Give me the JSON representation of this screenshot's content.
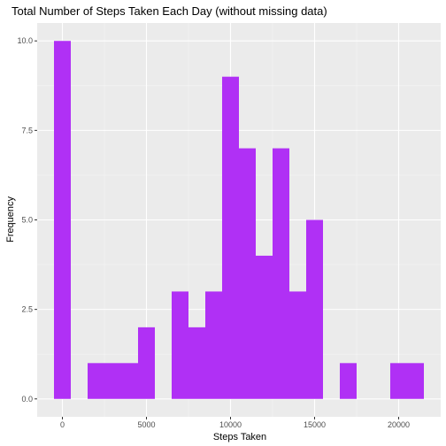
{
  "chart_data": {
    "type": "bar",
    "subtype": "histogram",
    "title": "Total Number of Steps Taken Each Day (without missing data)",
    "xlabel": "Steps Taken",
    "ylabel": "Frequency",
    "bin_width": 1000,
    "bin_centers": [
      0,
      1000,
      2000,
      3000,
      4000,
      5000,
      6000,
      7000,
      8000,
      9000,
      10000,
      11000,
      12000,
      13000,
      14000,
      15000,
      16000,
      17000,
      18000,
      19000,
      20000,
      21000
    ],
    "values": [
      10,
      0,
      1,
      1,
      1,
      2,
      0,
      3,
      2,
      3,
      9,
      7,
      4,
      7,
      3,
      5,
      0,
      1,
      0,
      0,
      1,
      1
    ],
    "xlim": [
      -1500,
      22500
    ],
    "ylim": [
      -0.5,
      10.5
    ],
    "x_ticks": [
      0,
      5000,
      10000,
      15000,
      20000
    ],
    "x_tick_labels": [
      "0",
      "5000",
      "10000",
      "15000",
      "20000"
    ],
    "y_ticks": [
      0,
      2.5,
      5,
      7.5,
      10
    ],
    "y_tick_labels": [
      "0.0",
      "2.5",
      "5.0",
      "7.5",
      "10.0"
    ],
    "grid": true,
    "colors": {
      "bar": "#B030F5",
      "panel": "#EBEBEB",
      "grid_major": "#FFFFFF",
      "grid_minor": "#F5F5F5",
      "tick": "#333333"
    }
  }
}
